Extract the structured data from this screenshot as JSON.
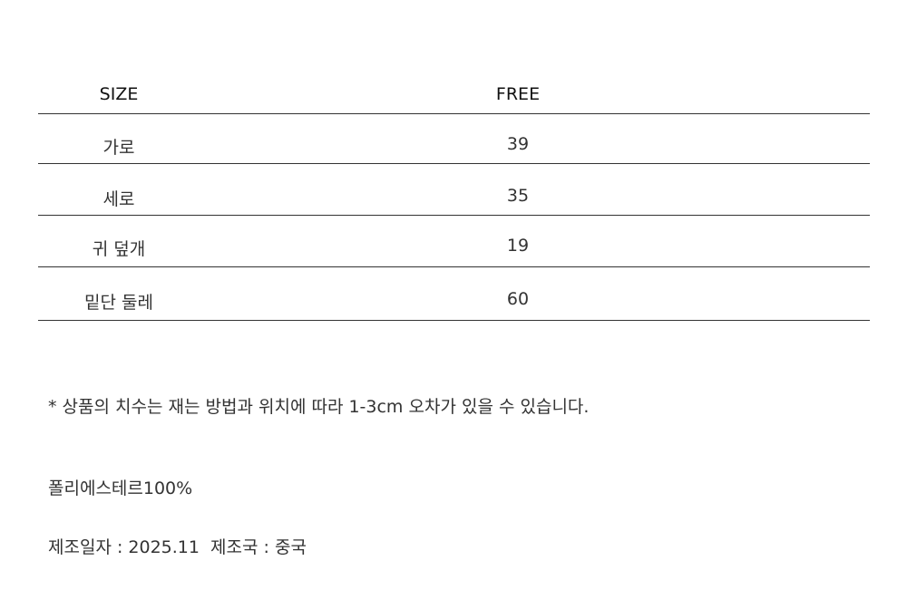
{
  "table": {
    "headers": [
      "SIZE",
      "FREE"
    ],
    "rows": [
      {
        "label": "가로",
        "value": "39"
      },
      {
        "label": "세로",
        "value": "35"
      },
      {
        "label": "귀 덮개",
        "value": "19"
      },
      {
        "label": "밑단 둘레",
        "value": "60"
      }
    ]
  },
  "notes": {
    "disclaimer": "* 상품의 치수는 재는 방법과 위치에 따라 1-3cm 오차가 있을 수 있습니다.",
    "material": "폴리에스테르100%",
    "manufacture": "제조일자 : 2025.11  제조국 : 중국"
  }
}
